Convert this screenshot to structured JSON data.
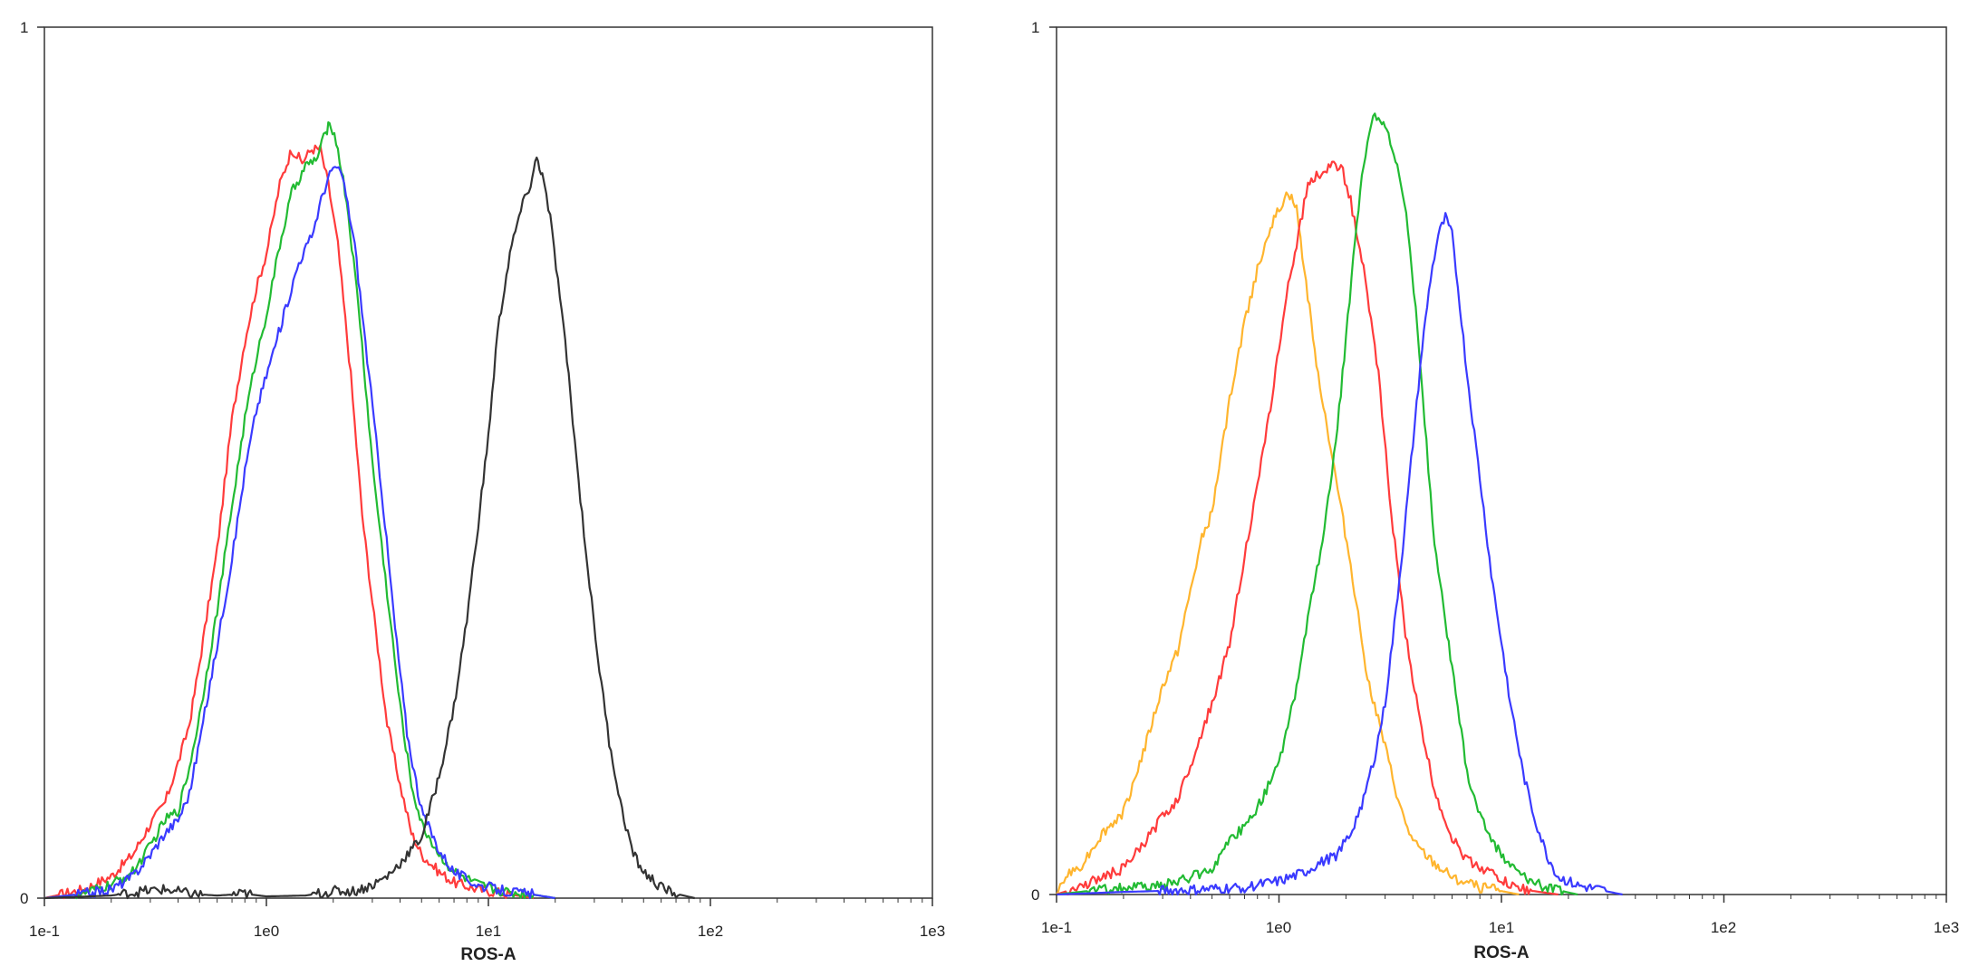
{
  "chart_data": [
    {
      "type": "line",
      "title": "",
      "xlabel": "ROS-A",
      "ylabel": "",
      "xscale": "log",
      "xlim": [
        0.1,
        1000
      ],
      "ylim": [
        0,
        1
      ],
      "grid": false,
      "x_ticks": [
        "1e-1",
        "1e0",
        "1e1",
        "1e2",
        "1e3"
      ],
      "y_ticks": [
        "0",
        "1"
      ],
      "series": [
        {
          "color": "#ff3b3b",
          "points": [
            [
              0.1,
              0.0
            ],
            [
              0.15,
              0.01
            ],
            [
              0.2,
              0.025
            ],
            [
              0.25,
              0.05
            ],
            [
              0.3,
              0.085
            ],
            [
              0.35,
              0.11
            ],
            [
              0.4,
              0.155
            ],
            [
              0.45,
              0.2
            ],
            [
              0.5,
              0.27
            ],
            [
              0.6,
              0.4
            ],
            [
              0.7,
              0.55
            ],
            [
              0.8,
              0.64
            ],
            [
              0.9,
              0.7
            ],
            [
              1.0,
              0.74
            ],
            [
              1.15,
              0.82
            ],
            [
              1.3,
              0.86
            ],
            [
              1.45,
              0.845
            ],
            [
              1.6,
              0.86
            ],
            [
              1.75,
              0.86
            ],
            [
              1.9,
              0.82
            ],
            [
              2.1,
              0.75
            ],
            [
              2.4,
              0.6
            ],
            [
              2.7,
              0.44
            ],
            [
              3.0,
              0.34
            ],
            [
              3.5,
              0.2
            ],
            [
              4.0,
              0.13
            ],
            [
              4.5,
              0.075
            ],
            [
              5.0,
              0.05
            ],
            [
              6.0,
              0.03
            ],
            [
              7.0,
              0.018
            ],
            [
              9.0,
              0.01
            ],
            [
              12.0,
              0.005
            ],
            [
              16.0,
              0.0
            ]
          ]
        },
        {
          "color": "#22bb33",
          "points": [
            [
              0.1,
              0.0
            ],
            [
              0.15,
              0.005
            ],
            [
              0.2,
              0.015
            ],
            [
              0.25,
              0.03
            ],
            [
              0.3,
              0.06
            ],
            [
              0.35,
              0.09
            ],
            [
              0.4,
              0.1
            ],
            [
              0.45,
              0.15
            ],
            [
              0.5,
              0.21
            ],
            [
              0.6,
              0.33
            ],
            [
              0.7,
              0.45
            ],
            [
              0.8,
              0.55
            ],
            [
              0.9,
              0.62
            ],
            [
              1.0,
              0.67
            ],
            [
              1.15,
              0.75
            ],
            [
              1.3,
              0.81
            ],
            [
              1.5,
              0.84
            ],
            [
              1.7,
              0.85
            ],
            [
              1.85,
              0.88
            ],
            [
              1.95,
              0.89
            ],
            [
              2.1,
              0.86
            ],
            [
              2.3,
              0.8
            ],
            [
              2.6,
              0.68
            ],
            [
              3.0,
              0.5
            ],
            [
              3.5,
              0.35
            ],
            [
              4.0,
              0.22
            ],
            [
              4.5,
              0.13
            ],
            [
              5.0,
              0.085
            ],
            [
              6.0,
              0.05
            ],
            [
              7.0,
              0.03
            ],
            [
              9.0,
              0.015
            ],
            [
              12.0,
              0.007
            ],
            [
              16.0,
              0.004
            ],
            [
              20.0,
              0.0
            ]
          ]
        },
        {
          "color": "#3a3aff",
          "points": [
            [
              0.1,
              0.0
            ],
            [
              0.15,
              0.005
            ],
            [
              0.2,
              0.01
            ],
            [
              0.25,
              0.025
            ],
            [
              0.3,
              0.05
            ],
            [
              0.35,
              0.075
            ],
            [
              0.4,
              0.09
            ],
            [
              0.45,
              0.12
            ],
            [
              0.5,
              0.18
            ],
            [
              0.6,
              0.29
            ],
            [
              0.7,
              0.39
            ],
            [
              0.8,
              0.49
            ],
            [
              0.9,
              0.56
            ],
            [
              1.0,
              0.6
            ],
            [
              1.2,
              0.67
            ],
            [
              1.4,
              0.73
            ],
            [
              1.6,
              0.76
            ],
            [
              1.8,
              0.81
            ],
            [
              2.0,
              0.84
            ],
            [
              2.2,
              0.83
            ],
            [
              2.5,
              0.75
            ],
            [
              2.9,
              0.6
            ],
            [
              3.3,
              0.47
            ],
            [
              3.8,
              0.31
            ],
            [
              4.3,
              0.19
            ],
            [
              5.0,
              0.1
            ],
            [
              6.0,
              0.055
            ],
            [
              7.0,
              0.03
            ],
            [
              9.0,
              0.015
            ],
            [
              12.0,
              0.008
            ],
            [
              16.0,
              0.004
            ],
            [
              20.0,
              0.0
            ]
          ]
        },
        {
          "color": "#333333",
          "points": [
            [
              0.1,
              0.0
            ],
            [
              0.2,
              0.003
            ],
            [
              0.28,
              0.008
            ],
            [
              0.35,
              0.01
            ],
            [
              0.45,
              0.005
            ],
            [
              0.6,
              0.003
            ],
            [
              0.8,
              0.005
            ],
            [
              1.0,
              0.002
            ],
            [
              1.5,
              0.003
            ],
            [
              2.0,
              0.008
            ],
            [
              2.5,
              0.008
            ],
            [
              3.0,
              0.015
            ],
            [
              3.5,
              0.025
            ],
            [
              4.0,
              0.04
            ],
            [
              5.0,
              0.07
            ],
            [
              6.0,
              0.14
            ],
            [
              7.0,
              0.22
            ],
            [
              8.0,
              0.32
            ],
            [
              9.0,
              0.43
            ],
            [
              10.0,
              0.53
            ],
            [
              11.0,
              0.65
            ],
            [
              12.5,
              0.74
            ],
            [
              14.0,
              0.79
            ],
            [
              15.5,
              0.82
            ],
            [
              16.5,
              0.85
            ],
            [
              17.5,
              0.83
            ],
            [
              19.0,
              0.78
            ],
            [
              21.0,
              0.69
            ],
            [
              23.0,
              0.6
            ],
            [
              25.0,
              0.5
            ],
            [
              28.0,
              0.38
            ],
            [
              31.0,
              0.28
            ],
            [
              35.0,
              0.18
            ],
            [
              40.0,
              0.1
            ],
            [
              45.0,
              0.05
            ],
            [
              50.0,
              0.03
            ],
            [
              60.0,
              0.012
            ],
            [
              70.0,
              0.005
            ],
            [
              85.0,
              0.0
            ]
          ]
        }
      ]
    },
    {
      "type": "line",
      "title": "",
      "xlabel": "ROS-A",
      "ylabel": "",
      "xscale": "log",
      "xlim": [
        0.1,
        1000
      ],
      "ylim": [
        0,
        1
      ],
      "grid": false,
      "x_ticks": [
        "1e-1",
        "1e0",
        "1e1",
        "1e2",
        "1e3"
      ],
      "y_ticks": [
        "0",
        "1"
      ],
      "series": [
        {
          "color": "#ffb52e",
          "points": [
            [
              0.1,
              0.0
            ],
            [
              0.11,
              0.02
            ],
            [
              0.13,
              0.035
            ],
            [
              0.16,
              0.07
            ],
            [
              0.2,
              0.095
            ],
            [
              0.25,
              0.17
            ],
            [
              0.3,
              0.24
            ],
            [
              0.35,
              0.28
            ],
            [
              0.4,
              0.35
            ],
            [
              0.45,
              0.41
            ],
            [
              0.5,
              0.44
            ],
            [
              0.6,
              0.57
            ],
            [
              0.7,
              0.66
            ],
            [
              0.8,
              0.72
            ],
            [
              0.9,
              0.765
            ],
            [
              1.0,
              0.79
            ],
            [
              1.1,
              0.81
            ],
            [
              1.2,
              0.79
            ],
            [
              1.3,
              0.72
            ],
            [
              1.5,
              0.6
            ],
            [
              1.8,
              0.48
            ],
            [
              2.1,
              0.38
            ],
            [
              2.5,
              0.25
            ],
            [
              3.0,
              0.17
            ],
            [
              3.5,
              0.1
            ],
            [
              4.0,
              0.06
            ],
            [
              5.0,
              0.035
            ],
            [
              6.0,
              0.02
            ],
            [
              8.0,
              0.008
            ],
            [
              10.0,
              0.004
            ],
            [
              12.0,
              0.0
            ]
          ]
        },
        {
          "color": "#ff3b3b",
          "points": [
            [
              0.1,
              0.0
            ],
            [
              0.13,
              0.01
            ],
            [
              0.16,
              0.02
            ],
            [
              0.2,
              0.03
            ],
            [
              0.25,
              0.06
            ],
            [
              0.3,
              0.09
            ],
            [
              0.35,
              0.11
            ],
            [
              0.4,
              0.15
            ],
            [
              0.5,
              0.22
            ],
            [
              0.6,
              0.29
            ],
            [
              0.7,
              0.39
            ],
            [
              0.8,
              0.47
            ],
            [
              0.9,
              0.55
            ],
            [
              1.0,
              0.63
            ],
            [
              1.1,
              0.7
            ],
            [
              1.2,
              0.75
            ],
            [
              1.35,
              0.82
            ],
            [
              1.5,
              0.83
            ],
            [
              1.7,
              0.84
            ],
            [
              1.9,
              0.84
            ],
            [
              2.1,
              0.8
            ],
            [
              2.4,
              0.72
            ],
            [
              2.8,
              0.6
            ],
            [
              3.2,
              0.44
            ],
            [
              3.7,
              0.3
            ],
            [
              4.3,
              0.2
            ],
            [
              5.0,
              0.12
            ],
            [
              6.0,
              0.065
            ],
            [
              7.0,
              0.04
            ],
            [
              9.0,
              0.025
            ],
            [
              11.0,
              0.01
            ],
            [
              14.0,
              0.004
            ],
            [
              18.0,
              0.0
            ]
          ]
        },
        {
          "color": "#22bb33",
          "points": [
            [
              0.1,
              0.0
            ],
            [
              0.15,
              0.005
            ],
            [
              0.2,
              0.008
            ],
            [
              0.3,
              0.01
            ],
            [
              0.4,
              0.02
            ],
            [
              0.5,
              0.03
            ],
            [
              0.6,
              0.06
            ],
            [
              0.7,
              0.08
            ],
            [
              0.8,
              0.1
            ],
            [
              1.0,
              0.15
            ],
            [
              1.2,
              0.24
            ],
            [
              1.4,
              0.34
            ],
            [
              1.6,
              0.42
            ],
            [
              1.8,
              0.52
            ],
            [
              2.0,
              0.64
            ],
            [
              2.2,
              0.76
            ],
            [
              2.4,
              0.84
            ],
            [
              2.6,
              0.89
            ],
            [
              2.8,
              0.9
            ],
            [
              3.0,
              0.885
            ],
            [
              3.4,
              0.84
            ],
            [
              3.8,
              0.77
            ],
            [
              4.2,
              0.65
            ],
            [
              4.6,
              0.52
            ],
            [
              5.0,
              0.4
            ],
            [
              5.5,
              0.33
            ],
            [
              6.0,
              0.26
            ],
            [
              7.0,
              0.14
            ],
            [
              8.0,
              0.09
            ],
            [
              9.0,
              0.065
            ],
            [
              10.0,
              0.045
            ],
            [
              12.0,
              0.025
            ],
            [
              15.0,
              0.01
            ],
            [
              18.0,
              0.005
            ],
            [
              22.0,
              0.0
            ]
          ]
        },
        {
          "color": "#3a3aff",
          "points": [
            [
              0.1,
              0.0
            ],
            [
              0.2,
              0.003
            ],
            [
              0.4,
              0.005
            ],
            [
              0.7,
              0.008
            ],
            [
              1.0,
              0.015
            ],
            [
              1.3,
              0.025
            ],
            [
              1.5,
              0.035
            ],
            [
              1.8,
              0.045
            ],
            [
              2.1,
              0.07
            ],
            [
              2.4,
              0.11
            ],
            [
              2.7,
              0.16
            ],
            [
              3.0,
              0.22
            ],
            [
              3.3,
              0.31
            ],
            [
              3.6,
              0.4
            ],
            [
              4.0,
              0.52
            ],
            [
              4.4,
              0.63
            ],
            [
              4.8,
              0.71
            ],
            [
              5.2,
              0.76
            ],
            [
              5.6,
              0.78
            ],
            [
              6.0,
              0.76
            ],
            [
              6.5,
              0.68
            ],
            [
              7.0,
              0.6
            ],
            [
              8.0,
              0.48
            ],
            [
              9.0,
              0.37
            ],
            [
              10.0,
              0.29
            ],
            [
              11.0,
              0.22
            ],
            [
              12.5,
              0.14
            ],
            [
              14.0,
              0.09
            ],
            [
              16.0,
              0.045
            ],
            [
              18.0,
              0.02
            ],
            [
              22.0,
              0.01
            ],
            [
              28.0,
              0.005
            ],
            [
              35.0,
              0.0
            ]
          ]
        }
      ]
    }
  ]
}
